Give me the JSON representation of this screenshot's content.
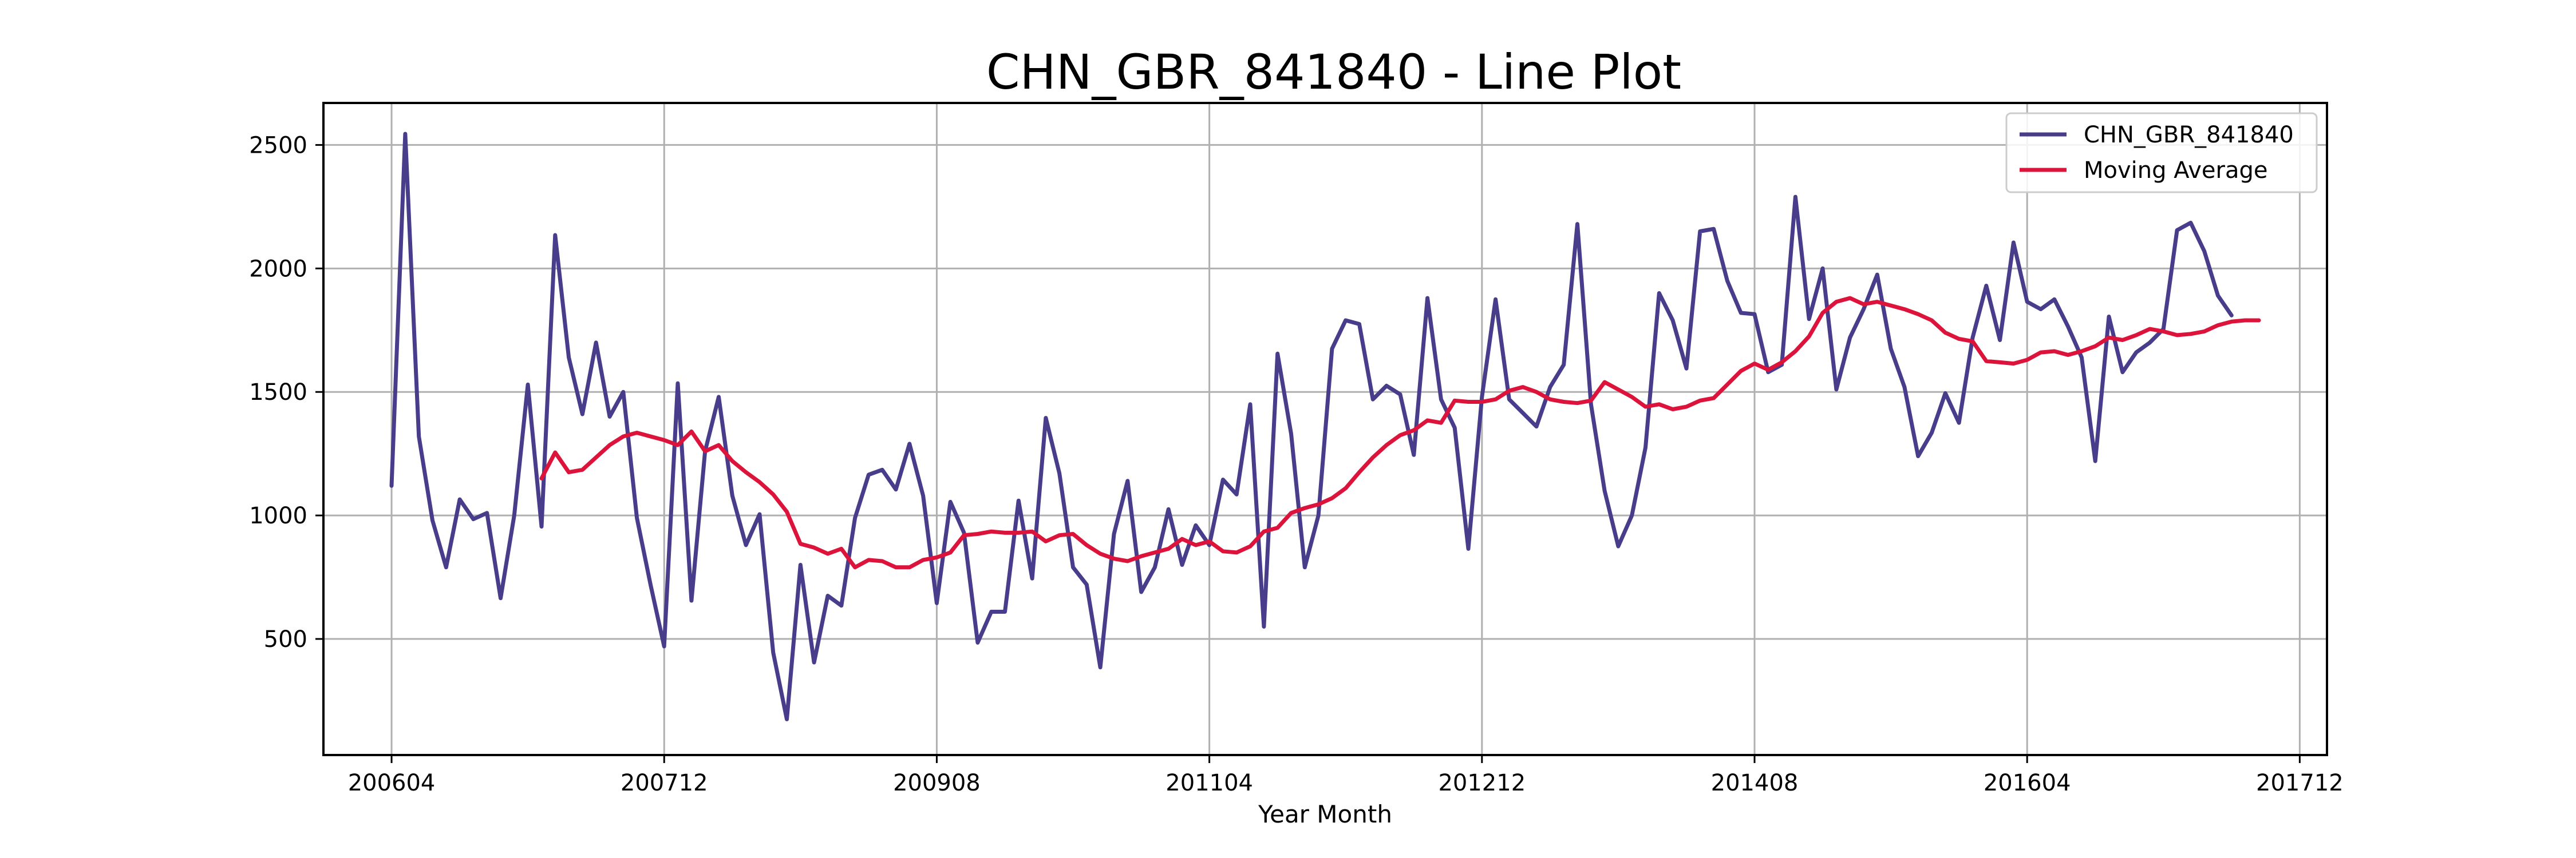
{
  "chart_data": {
    "type": "line",
    "title": "CHN_GBR_841840 - Line Plot",
    "xlabel": "Year Month",
    "ylabel": "",
    "x_start": "2006-04",
    "x_ticks": [
      "200604",
      "200712",
      "200908",
      "201104",
      "201212",
      "201408",
      "201604",
      "201712"
    ],
    "xlim": [
      "2005-11",
      "2018-02"
    ],
    "y_ticks": [
      500,
      1000,
      1500,
      2000,
      2500
    ],
    "ylim": [
      30,
      2670
    ],
    "grid": true,
    "legend_position": "top-right",
    "colors": {
      "series": "#483d8b",
      "moving_average": "#dc143c",
      "grid": "#b0b0b0",
      "axes": "#000000"
    },
    "series": [
      {
        "name": "CHN_GBR_841840",
        "values": [
          1120,
          2545,
          1320,
          980,
          790,
          1065,
          985,
          1010,
          665,
          1000,
          1530,
          955,
          2135,
          1640,
          1410,
          1700,
          1400,
          1500,
          990,
          720,
          470,
          1535,
          655,
          1260,
          1480,
          1080,
          880,
          1005,
          445,
          175,
          800,
          405,
          675,
          635,
          990,
          1165,
          1185,
          1105,
          1290,
          1080,
          645,
          1055,
          930,
          485,
          610,
          610,
          1060,
          745,
          1395,
          1170,
          790,
          720,
          385,
          925,
          1140,
          690,
          790,
          1025,
          800,
          960,
          880,
          1145,
          1085,
          1450,
          550,
          1655,
          1330,
          790,
          1000,
          1675,
          1790,
          1775,
          1470,
          1525,
          1490,
          1245,
          1880,
          1470,
          1355,
          865,
          1480,
          1875,
          1470,
          1415,
          1360,
          1520,
          1610,
          2180,
          1450,
          1100,
          875,
          1000,
          1275,
          1900,
          1790,
          1595,
          2150,
          2160,
          1950,
          1820,
          1815,
          1580,
          1610,
          2290,
          1795,
          2000,
          1510,
          1720,
          1835,
          1975,
          1675,
          1520,
          1240,
          1335,
          1495,
          1375,
          1720,
          1930,
          1710,
          2105,
          1865,
          1835,
          1875,
          1765,
          1640,
          1220,
          1805,
          1580,
          1660,
          1700,
          1755,
          2155,
          2185,
          2070,
          1890,
          1810
        ]
      },
      {
        "name": "Moving Average",
        "start_index": 11,
        "values": [
          1150,
          1255,
          1175,
          1185,
          1235,
          1285,
          1320,
          1335,
          1320,
          1305,
          1285,
          1340,
          1260,
          1285,
          1220,
          1175,
          1135,
          1085,
          1015,
          885,
          870,
          845,
          865,
          790,
          820,
          815,
          790,
          790,
          820,
          830,
          850,
          920,
          925,
          935,
          930,
          930,
          935,
          895,
          920,
          925,
          880,
          845,
          825,
          815,
          835,
          850,
          865,
          905,
          880,
          895,
          855,
          850,
          875,
          935,
          950,
          1010,
          1030,
          1045,
          1070,
          1110,
          1175,
          1235,
          1285,
          1325,
          1345,
          1385,
          1375,
          1465,
          1460,
          1460,
          1470,
          1505,
          1520,
          1500,
          1470,
          1460,
          1455,
          1465,
          1540,
          1510,
          1480,
          1440,
          1450,
          1430,
          1440,
          1465,
          1475,
          1530,
          1585,
          1615,
          1590,
          1620,
          1665,
          1725,
          1820,
          1865,
          1880,
          1855,
          1865,
          1850,
          1835,
          1815,
          1790,
          1740,
          1715,
          1705,
          1625,
          1620,
          1615,
          1630,
          1660,
          1665,
          1650,
          1665,
          1685,
          1720,
          1710,
          1730,
          1755,
          1745,
          1730,
          1735,
          1745,
          1770,
          1785,
          1790,
          1790
        ]
      }
    ]
  }
}
